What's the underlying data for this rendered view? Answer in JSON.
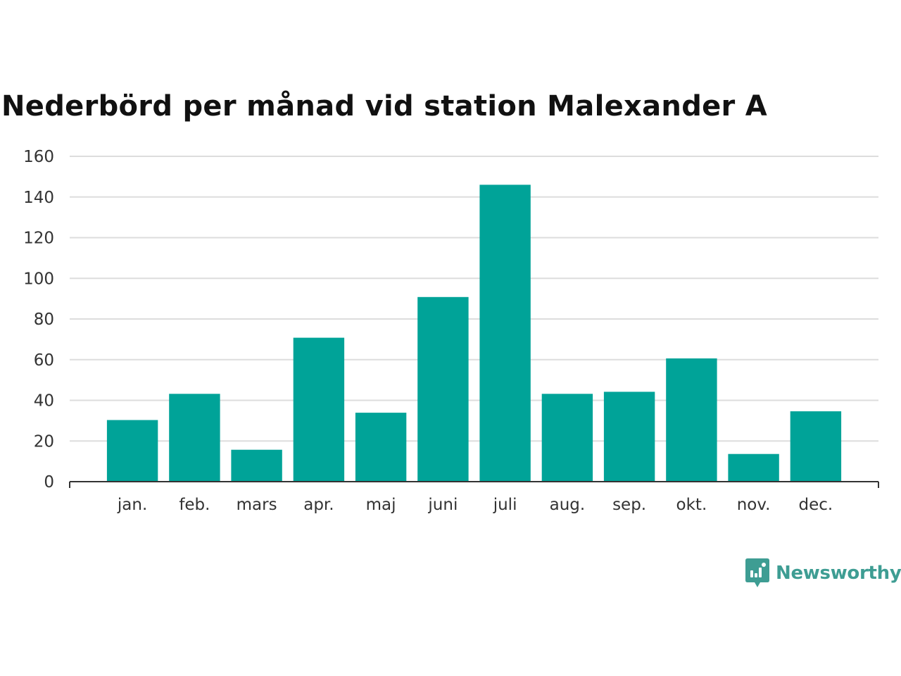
{
  "chart_data": {
    "type": "bar",
    "title": "Nederbörd per månad vid station Malexander A",
    "categories": [
      "jan.",
      "feb.",
      "mars",
      "apr.",
      "maj",
      "juni",
      "juli",
      "aug.",
      "sep.",
      "okt.",
      "nov.",
      "dec."
    ],
    "values": [
      30.3,
      43.2,
      15.7,
      70.8,
      33.9,
      90.8,
      146.0,
      43.2,
      44.2,
      60.6,
      13.6,
      34.6
    ],
    "xlabel": "",
    "ylabel": "",
    "ylim": [
      0,
      160
    ],
    "yticks": [
      "0",
      "20",
      "40",
      "60",
      "80",
      "100",
      "120",
      "140",
      "160"
    ],
    "grid": true,
    "legend": "none",
    "bar_color": "#00a398",
    "grid_color": "#dddddd",
    "axis_color": "#333333"
  },
  "brand": {
    "name": "Newsworthy",
    "icon": "newsworthy-logo-icon",
    "color": "#3e9d93"
  }
}
